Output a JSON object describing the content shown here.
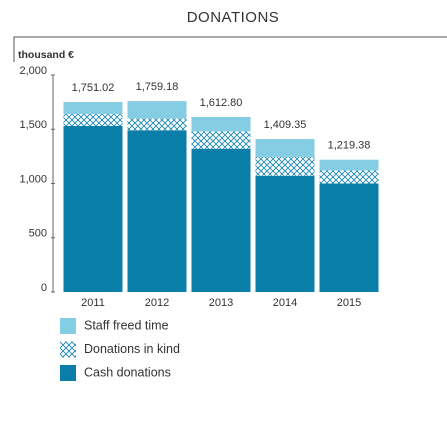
{
  "chart_data": {
    "type": "stacked_bar",
    "title": "DONATIONS",
    "y_label": "thousand €",
    "categories": [
      "2011",
      "2012",
      "2013",
      "2014",
      "2015"
    ],
    "series": [
      {
        "name": "Cash donations",
        "color": "#0a7ea8",
        "values": [
          1530,
          1490,
          1320,
          1070,
          1000
        ]
      },
      {
        "name": "Donations in kind",
        "color": "#1a86b2",
        "pattern": "crosshatch",
        "values": [
          110,
          110,
          160,
          175,
          120
        ]
      },
      {
        "name": "Staff freed time",
        "color": "#84cde2",
        "values": [
          111.02,
          159.18,
          132.8,
          164.35,
          99.38
        ]
      }
    ],
    "totals": {
      "values": [
        1751.02,
        1759.18,
        1612.8,
        1409.35,
        1219.38
      ],
      "value_labels": [
        "1,751.02",
        "1,759.18",
        "1,612.80",
        "1,409.35",
        "1,219.38"
      ]
    },
    "ylim": [
      0,
      2000
    ],
    "yticks": [
      0,
      500,
      {
        "value": 1000,
        "label": "1,000"
      },
      {
        "value": 1500,
        "label": "1,500"
      },
      {
        "value": 2000,
        "label": "2,000"
      }
    ]
  }
}
